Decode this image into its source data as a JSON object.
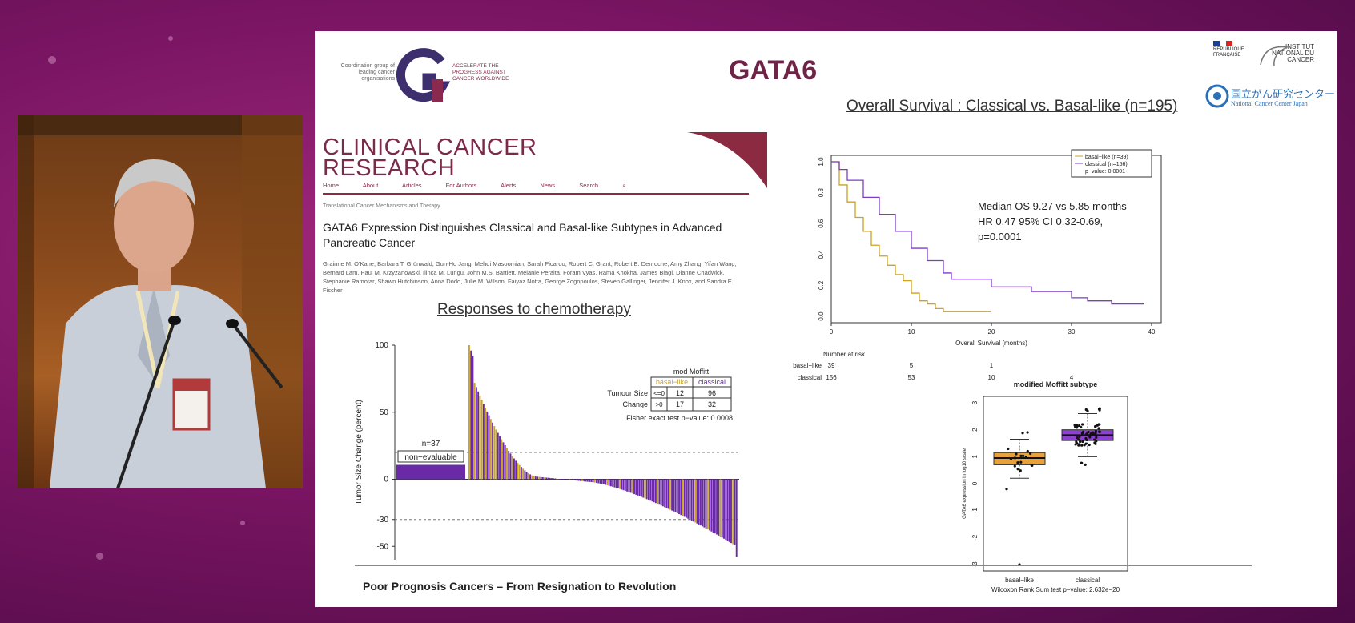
{
  "slide": {
    "title": "GATA6",
    "coalition": {
      "left_text": "Coordination group of leading cancer organisations",
      "right_text": "ACCELERATE THE PROGRESS AGAINST CANCER WORLDWIDE"
    },
    "logos": {
      "republique": "RÉPUBLIQUE FRANÇAISE",
      "inca": "INSTITUT NATIONAL DU CANCER",
      "ncc_jp": "国立がん研究センター",
      "ncc_en": "National Cancer Center Japan"
    },
    "journal": {
      "name_line1": "CLINICAL CANCER",
      "name_line2": "RESEARCH",
      "nav": [
        "Home",
        "About",
        "Articles",
        "For Authors",
        "Alerts",
        "News",
        "Search"
      ],
      "section": "Translational Cancer Mechanisms and Therapy",
      "article_title": "GATA6 Expression Distinguishes Classical and Basal-like Subtypes in Advanced Pancreatic Cancer",
      "authors": "Grainne M. O'Kane, Barbara T. Grünwald, Gun-Ho Jang, Mehdi Masoomian, Sarah Picardo, Robert C. Grant, Robert E. Denroche, Amy Zhang, Yifan Wang, Bernard Lam, Paul M. Krzyzanowski, Ilinca M. Lungu, John M.S. Bartlett, Melanie Peralta, Foram Vyas, Rama Khokha, James Biagi, Dianne Chadwick, Stephanie Ramotar, Shawn Hutchinson, Anna Dodd, Julie M. Wilson, Faiyaz Notta, George Zogopoulos, Steven Gallinger, Jennifer J. Knox, and Sandra E. Fischer"
    },
    "footer": "Poor Prognosis Cancers – From Resignation to Revolution"
  },
  "chart_data": [
    {
      "type": "bar",
      "title": "Responses to chemotherapy",
      "ylabel": "Tumor Size Change (percent)",
      "ylim": [
        -60,
        100
      ],
      "yticks": [
        100,
        50,
        0,
        -30,
        -50
      ],
      "reference_lines": [
        20,
        -30
      ],
      "annotation_n": "n=37",
      "annotation_box": "non−evaluable",
      "table": {
        "title": "mod Moffitt",
        "row_label_1": "Tumour Size",
        "row_label_2": "Change",
        "col1": "basal−like",
        "col2": "classical",
        "rows": [
          {
            "cond": "<=0",
            "basal": "12",
            "classical": "96"
          },
          {
            "cond": ">0",
            "basal": "17",
            "classical": "32"
          }
        ],
        "fisher": "Fisher exact test p−value: 0.0008"
      },
      "series": [
        {
          "name": "basal−like",
          "color": "#c9a227"
        },
        {
          "name": "classical",
          "color": "#6a2aa8"
        }
      ]
    },
    {
      "type": "line",
      "title": "Overall Survival : Classical vs. Basal-like (n=195)",
      "xlabel": "Overall Survival (months)",
      "xticks": [
        0,
        10,
        20,
        30,
        40
      ],
      "yticks": [
        "1.0",
        "0.8",
        "0.6",
        "0.4",
        "0.2",
        "0.0"
      ],
      "xlim": [
        0,
        40
      ],
      "ylim": [
        0,
        1
      ],
      "legend": [
        "basal−like (n=39)",
        "classical (n=156)",
        "p−value: 0.0001"
      ],
      "annotation": [
        "Median OS 9.27 vs 5.85 months",
        "HR 0.47  95% CI 0.32-0.69,",
        "p=0.0001"
      ],
      "risk_header": "Number at risk",
      "risk": [
        {
          "label": "basal−like",
          "values": [
            "39",
            "5",
            "1"
          ]
        },
        {
          "label": "classical",
          "values": [
            "156",
            "53",
            "10",
            "4"
          ]
        }
      ],
      "series": [
        {
          "name": "basal−like",
          "color": "#c9a227",
          "x": [
            0,
            1,
            2,
            3,
            4,
            5,
            6,
            7,
            8,
            9,
            10,
            11,
            12,
            13,
            14,
            15,
            20
          ],
          "y": [
            1.0,
            0.85,
            0.74,
            0.64,
            0.55,
            0.46,
            0.39,
            0.33,
            0.27,
            0.23,
            0.15,
            0.1,
            0.08,
            0.05,
            0.03,
            0.03,
            0.03
          ]
        },
        {
          "name": "classical",
          "color": "#7b3fc7",
          "x": [
            0,
            1,
            2,
            4,
            6,
            8,
            10,
            12,
            14,
            15,
            17,
            20,
            25,
            30,
            32,
            35,
            39
          ],
          "y": [
            1.0,
            0.95,
            0.88,
            0.77,
            0.66,
            0.55,
            0.44,
            0.36,
            0.28,
            0.24,
            0.24,
            0.19,
            0.16,
            0.12,
            0.1,
            0.08,
            0.08
          ]
        }
      ]
    },
    {
      "type": "box",
      "title": "modified Moffitt subtype",
      "ylabel": "GATA6 expression in log10 scale",
      "categories": [
        "basal−like",
        "classical"
      ],
      "yticks": [
        3,
        2,
        1,
        0,
        -1,
        -2,
        -3
      ],
      "ylim": [
        -3,
        3
      ],
      "boxes": [
        {
          "name": "basal−like",
          "q1": 0.7,
          "median": 0.95,
          "q3": 1.15,
          "whisker_low": 0.2,
          "whisker_high": 1.65,
          "outlier": -3.0,
          "color": "#e6a23c"
        },
        {
          "name": "classical",
          "q1": 1.6,
          "median": 1.8,
          "q3": 2.0,
          "whisker_low": 1.0,
          "whisker_high": 2.6,
          "color": "#8e3fd4"
        }
      ],
      "test": "Wilcoxon Rank Sum test p−value: 2.632e−20"
    }
  ]
}
